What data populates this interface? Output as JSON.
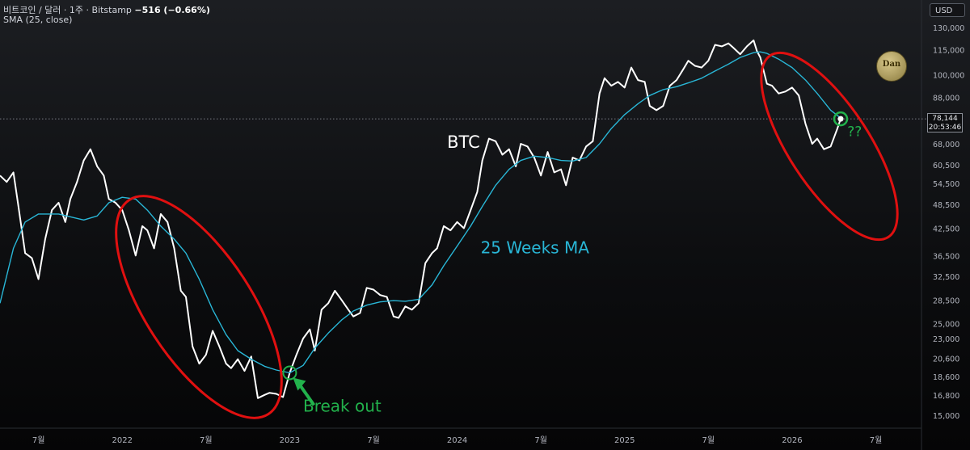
{
  "header": {
    "symbol": "비트코인 / 달러 · 1주 · Bitstamp",
    "change": "−516 (−0.66%)",
    "indicator": "SMA (25, close)",
    "currency": "USD"
  },
  "price_tag": {
    "price": "78,144",
    "countdown": "20:53:46"
  },
  "logo": {
    "text": "Dan"
  },
  "chart_data": {
    "type": "line",
    "title": "",
    "xlabel": "",
    "ylabel": "",
    "y_scale": "log",
    "ylim": [
      14000,
      138000
    ],
    "x_ticks": [
      {
        "label": "7월",
        "x": 2021.5
      },
      {
        "label": "2022",
        "x": 2022.0
      },
      {
        "label": "7월",
        "x": 2022.5
      },
      {
        "label": "2023",
        "x": 2023.0
      },
      {
        "label": "7월",
        "x": 2023.5
      },
      {
        "label": "2024",
        "x": 2024.0
      },
      {
        "label": "7월",
        "x": 2024.5
      },
      {
        "label": "2025",
        "x": 2025.0
      },
      {
        "label": "7월",
        "x": 2025.5
      },
      {
        "label": "2026",
        "x": 2026.0
      },
      {
        "label": "7월",
        "x": 2026.5
      }
    ],
    "y_ticks": [
      {
        "label": "130,000",
        "v": 130000
      },
      {
        "label": "115,000",
        "v": 115000
      },
      {
        "label": "100,000",
        "v": 100000
      },
      {
        "label": "88,000",
        "v": 88000
      },
      {
        "label": "68,000",
        "v": 68000
      },
      {
        "label": "60,500",
        "v": 60500
      },
      {
        "label": "54,500",
        "v": 54500
      },
      {
        "label": "48,500",
        "v": 48500
      },
      {
        "label": "42,500",
        "v": 42500
      },
      {
        "label": "36,500",
        "v": 36500
      },
      {
        "label": "32,500",
        "v": 32500
      },
      {
        "label": "28,500",
        "v": 28500
      },
      {
        "label": "25,000",
        "v": 25000
      },
      {
        "label": "23,000",
        "v": 23000
      },
      {
        "label": "20,600",
        "v": 20600
      },
      {
        "label": "18,600",
        "v": 18600
      },
      {
        "label": "16,800",
        "v": 16800
      },
      {
        "label": "15,000",
        "v": 15000
      }
    ],
    "current_price": 78144,
    "series": [
      {
        "name": "BTC",
        "color": "#ffffff",
        "points": [
          [
            2021.27,
            57000
          ],
          [
            2021.31,
            55000
          ],
          [
            2021.35,
            58000
          ],
          [
            2021.38,
            48000
          ],
          [
            2021.42,
            37000
          ],
          [
            2021.46,
            36000
          ],
          [
            2021.5,
            32000
          ],
          [
            2021.54,
            40000
          ],
          [
            2021.58,
            47000
          ],
          [
            2021.62,
            49000
          ],
          [
            2021.66,
            44000
          ],
          [
            2021.69,
            50000
          ],
          [
            2021.73,
            55000
          ],
          [
            2021.77,
            62000
          ],
          [
            2021.81,
            66000
          ],
          [
            2021.85,
            60000
          ],
          [
            2021.89,
            57000
          ],
          [
            2021.92,
            50000
          ],
          [
            2021.96,
            49000
          ],
          [
            2022.0,
            47000
          ],
          [
            2022.04,
            42000
          ],
          [
            2022.08,
            36500
          ],
          [
            2022.12,
            43000
          ],
          [
            2022.15,
            42000
          ],
          [
            2022.19,
            38000
          ],
          [
            2022.23,
            46000
          ],
          [
            2022.27,
            44000
          ],
          [
            2022.31,
            38000
          ],
          [
            2022.35,
            30000
          ],
          [
            2022.38,
            29000
          ],
          [
            2022.42,
            22000
          ],
          [
            2022.46,
            20000
          ],
          [
            2022.5,
            21000
          ],
          [
            2022.54,
            24000
          ],
          [
            2022.58,
            22000
          ],
          [
            2022.62,
            20000
          ],
          [
            2022.65,
            19500
          ],
          [
            2022.69,
            20500
          ],
          [
            2022.73,
            19200
          ],
          [
            2022.77,
            20800
          ],
          [
            2022.81,
            16500
          ],
          [
            2022.85,
            16800
          ],
          [
            2022.88,
            17000
          ],
          [
            2022.92,
            16900
          ],
          [
            2022.96,
            16600
          ],
          [
            2023.0,
            19000
          ],
          [
            2023.04,
            21000
          ],
          [
            2023.08,
            23000
          ],
          [
            2023.12,
            24200
          ],
          [
            2023.15,
            21500
          ],
          [
            2023.19,
            27000
          ],
          [
            2023.23,
            28000
          ],
          [
            2023.27,
            30000
          ],
          [
            2023.31,
            28500
          ],
          [
            2023.35,
            27000
          ],
          [
            2023.38,
            26000
          ],
          [
            2023.42,
            26500
          ],
          [
            2023.46,
            30500
          ],
          [
            2023.5,
            30200
          ],
          [
            2023.54,
            29300
          ],
          [
            2023.58,
            29000
          ],
          [
            2023.62,
            26000
          ],
          [
            2023.65,
            25800
          ],
          [
            2023.69,
            27500
          ],
          [
            2023.73,
            27000
          ],
          [
            2023.77,
            28000
          ],
          [
            2023.81,
            35000
          ],
          [
            2023.85,
            37000
          ],
          [
            2023.88,
            38000
          ],
          [
            2023.92,
            43000
          ],
          [
            2023.96,
            42000
          ],
          [
            2024.0,
            44000
          ],
          [
            2024.04,
            42500
          ],
          [
            2024.08,
            47000
          ],
          [
            2024.12,
            52000
          ],
          [
            2024.15,
            62000
          ],
          [
            2024.19,
            70000
          ],
          [
            2024.23,
            69000
          ],
          [
            2024.27,
            64000
          ],
          [
            2024.31,
            66000
          ],
          [
            2024.35,
            60000
          ],
          [
            2024.38,
            68000
          ],
          [
            2024.42,
            67000
          ],
          [
            2024.46,
            63000
          ],
          [
            2024.5,
            57000
          ],
          [
            2024.54,
            65000
          ],
          [
            2024.58,
            58000
          ],
          [
            2024.62,
            59000
          ],
          [
            2024.65,
            54000
          ],
          [
            2024.69,
            63000
          ],
          [
            2024.73,
            62000
          ],
          [
            2024.77,
            67000
          ],
          [
            2024.81,
            69000
          ],
          [
            2024.85,
            90000
          ],
          [
            2024.88,
            98000
          ],
          [
            2024.92,
            94000
          ],
          [
            2024.96,
            96000
          ],
          [
            2025.0,
            93000
          ],
          [
            2025.04,
            104000
          ],
          [
            2025.08,
            97000
          ],
          [
            2025.12,
            96000
          ],
          [
            2025.15,
            84000
          ],
          [
            2025.19,
            82000
          ],
          [
            2025.23,
            84000
          ],
          [
            2025.27,
            94000
          ],
          [
            2025.31,
            97000
          ],
          [
            2025.35,
            103000
          ],
          [
            2025.38,
            108000
          ],
          [
            2025.42,
            105000
          ],
          [
            2025.46,
            104000
          ],
          [
            2025.5,
            108000
          ],
          [
            2025.54,
            118000
          ],
          [
            2025.58,
            117000
          ],
          [
            2025.62,
            119000
          ],
          [
            2025.65,
            116000
          ],
          [
            2025.69,
            112000
          ],
          [
            2025.73,
            117000
          ],
          [
            2025.77,
            121000
          ],
          [
            2025.79,
            114000
          ],
          [
            2025.81,
            110000
          ],
          [
            2025.85,
            95000
          ],
          [
            2025.88,
            94000
          ],
          [
            2025.92,
            90000
          ],
          [
            2025.96,
            91000
          ],
          [
            2026.0,
            93000
          ],
          [
            2026.04,
            89000
          ],
          [
            2026.08,
            76000
          ],
          [
            2026.12,
            68000
          ],
          [
            2026.15,
            70000
          ],
          [
            2026.19,
            66000
          ],
          [
            2026.23,
            67000
          ],
          [
            2026.27,
            74000
          ],
          [
            2026.29,
            78144
          ]
        ]
      },
      {
        "name": "25 Weeks MA",
        "color": "#29b6d6",
        "points": [
          [
            2021.27,
            28000
          ],
          [
            2021.35,
            38000
          ],
          [
            2021.42,
            44000
          ],
          [
            2021.5,
            46000
          ],
          [
            2021.62,
            46000
          ],
          [
            2021.77,
            44500
          ],
          [
            2021.85,
            45500
          ],
          [
            2021.92,
            49000
          ],
          [
            2022.0,
            50500
          ],
          [
            2022.08,
            50000
          ],
          [
            2022.15,
            47000
          ],
          [
            2022.23,
            43000
          ],
          [
            2022.31,
            40000
          ],
          [
            2022.38,
            37000
          ],
          [
            2022.46,
            32000
          ],
          [
            2022.54,
            27000
          ],
          [
            2022.62,
            23500
          ],
          [
            2022.69,
            21500
          ],
          [
            2022.77,
            20500
          ],
          [
            2022.85,
            19700
          ],
          [
            2022.92,
            19300
          ],
          [
            2023.0,
            19000
          ],
          [
            2023.08,
            19800
          ],
          [
            2023.15,
            21800
          ],
          [
            2023.23,
            23700
          ],
          [
            2023.31,
            25500
          ],
          [
            2023.38,
            26800
          ],
          [
            2023.46,
            27700
          ],
          [
            2023.54,
            28200
          ],
          [
            2023.62,
            28400
          ],
          [
            2023.69,
            28300
          ],
          [
            2023.77,
            28600
          ],
          [
            2023.85,
            31000
          ],
          [
            2023.92,
            34500
          ],
          [
            2024.0,
            38500
          ],
          [
            2024.08,
            43000
          ],
          [
            2024.15,
            48000
          ],
          [
            2024.23,
            54000
          ],
          [
            2024.31,
            59000
          ],
          [
            2024.38,
            62000
          ],
          [
            2024.46,
            63500
          ],
          [
            2024.54,
            63000
          ],
          [
            2024.62,
            62000
          ],
          [
            2024.69,
            61800
          ],
          [
            2024.77,
            63000
          ],
          [
            2024.85,
            68000
          ],
          [
            2024.92,
            74000
          ],
          [
            2025.0,
            80000
          ],
          [
            2025.08,
            85000
          ],
          [
            2025.15,
            89000
          ],
          [
            2025.23,
            92000
          ],
          [
            2025.31,
            93500
          ],
          [
            2025.38,
            95500
          ],
          [
            2025.46,
            98000
          ],
          [
            2025.54,
            102000
          ],
          [
            2025.62,
            106000
          ],
          [
            2025.69,
            110000
          ],
          [
            2025.77,
            113000
          ],
          [
            2025.81,
            113500
          ],
          [
            2025.85,
            112500
          ],
          [
            2025.92,
            109000
          ],
          [
            2026.0,
            104000
          ],
          [
            2026.08,
            97000
          ],
          [
            2026.15,
            90000
          ],
          [
            2026.23,
            82000
          ],
          [
            2026.29,
            78500
          ]
        ]
      }
    ],
    "annotations": [
      {
        "text": "BTC",
        "x": 2023.94,
        "y": 66500,
        "color": "#ffffff"
      },
      {
        "text": "25 Weeks MA",
        "x": 2024.14,
        "y": 37000,
        "color": "#29b6d6"
      },
      {
        "text": "Break out",
        "x": 2023.08,
        "y": 15300,
        "color": "#22b24c"
      },
      {
        "text": "??",
        "x": 2026.33,
        "y": 71000,
        "color": "#22b24c"
      }
    ]
  }
}
